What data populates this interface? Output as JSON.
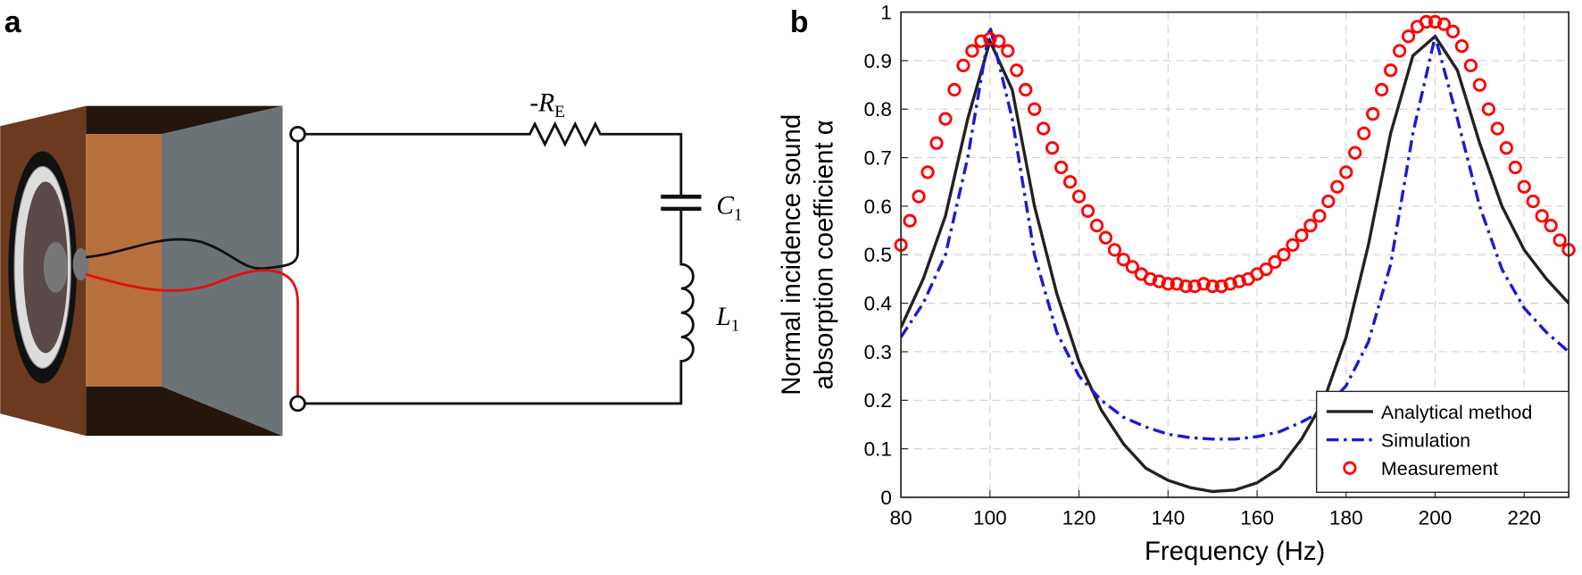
{
  "panel_labels": [
    "a",
    "b"
  ],
  "circuit": {
    "resistor": {
      "symbol": "-R",
      "subscript": "E"
    },
    "capacitor": {
      "symbol": "C",
      "subscript": "1"
    },
    "inductor": {
      "symbol": "L",
      "subscript": "1"
    }
  },
  "chart_data": {
    "type": "line",
    "xlabel": "Frequency (Hz)",
    "ylabel": [
      "Normal incidence sound",
      "absorption coefficient α"
    ],
    "xlim": [
      80,
      230
    ],
    "ylim": [
      0,
      1
    ],
    "xticks": [
      80,
      100,
      120,
      140,
      160,
      180,
      200,
      220
    ],
    "yticks": [
      0,
      0.1,
      0.2,
      0.3,
      0.4,
      0.5,
      0.6,
      0.7,
      0.8,
      0.9,
      1
    ],
    "grid": true,
    "legend": "lower right",
    "series": [
      {
        "name": "Analytical method",
        "color": "#222222",
        "style": "solid",
        "x": [
          80,
          85,
          90,
          95,
          100,
          105,
          110,
          115,
          120,
          125,
          130,
          135,
          140,
          145,
          150,
          155,
          160,
          165,
          170,
          175,
          180,
          185,
          190,
          195,
          200,
          205,
          210,
          215,
          220,
          225,
          230
        ],
        "values": [
          0.35,
          0.45,
          0.58,
          0.78,
          0.94,
          0.84,
          0.6,
          0.42,
          0.28,
          0.18,
          0.11,
          0.06,
          0.035,
          0.02,
          0.012,
          0.015,
          0.03,
          0.06,
          0.12,
          0.2,
          0.33,
          0.52,
          0.75,
          0.91,
          0.95,
          0.88,
          0.73,
          0.6,
          0.51,
          0.45,
          0.4
        ]
      },
      {
        "name": "Simulation",
        "color": "#1a1ad6",
        "style": "dashdot",
        "x": [
          80,
          85,
          90,
          95,
          100,
          105,
          110,
          115,
          120,
          125,
          130,
          135,
          140,
          145,
          150,
          155,
          160,
          165,
          170,
          175,
          180,
          185,
          190,
          195,
          200,
          205,
          210,
          215,
          220,
          225,
          230
        ],
        "values": [
          0.33,
          0.4,
          0.5,
          0.7,
          0.97,
          0.78,
          0.5,
          0.34,
          0.25,
          0.2,
          0.165,
          0.145,
          0.13,
          0.123,
          0.12,
          0.12,
          0.125,
          0.135,
          0.155,
          0.18,
          0.23,
          0.32,
          0.48,
          0.75,
          0.95,
          0.78,
          0.6,
          0.47,
          0.39,
          0.34,
          0.3
        ]
      },
      {
        "name": "Measurement",
        "color": "#ff0000",
        "style": "circles",
        "x": [
          80,
          82,
          84,
          86,
          88,
          90,
          92,
          94,
          96,
          98,
          100,
          102,
          104,
          106,
          108,
          110,
          112,
          114,
          116,
          118,
          120,
          122,
          124,
          126,
          128,
          130,
          132,
          134,
          136,
          138,
          140,
          142,
          144,
          146,
          148,
          150,
          152,
          154,
          156,
          158,
          160,
          162,
          164,
          166,
          168,
          170,
          172,
          174,
          176,
          178,
          180,
          182,
          184,
          186,
          188,
          190,
          192,
          194,
          196,
          198,
          200,
          202,
          204,
          206,
          208,
          210,
          212,
          214,
          216,
          218,
          220,
          222,
          224,
          226,
          228,
          230
        ],
        "values": [
          0.52,
          0.57,
          0.62,
          0.67,
          0.73,
          0.78,
          0.84,
          0.89,
          0.92,
          0.94,
          0.945,
          0.94,
          0.92,
          0.88,
          0.84,
          0.8,
          0.76,
          0.72,
          0.68,
          0.65,
          0.62,
          0.59,
          0.56,
          0.535,
          0.51,
          0.49,
          0.475,
          0.46,
          0.45,
          0.445,
          0.44,
          0.44,
          0.435,
          0.435,
          0.44,
          0.435,
          0.435,
          0.44,
          0.445,
          0.45,
          0.46,
          0.47,
          0.485,
          0.5,
          0.52,
          0.54,
          0.56,
          0.58,
          0.61,
          0.64,
          0.67,
          0.71,
          0.75,
          0.79,
          0.84,
          0.88,
          0.92,
          0.95,
          0.97,
          0.98,
          0.98,
          0.975,
          0.96,
          0.93,
          0.89,
          0.85,
          0.8,
          0.76,
          0.72,
          0.68,
          0.64,
          0.61,
          0.58,
          0.56,
          0.53,
          0.51
        ]
      }
    ]
  }
}
